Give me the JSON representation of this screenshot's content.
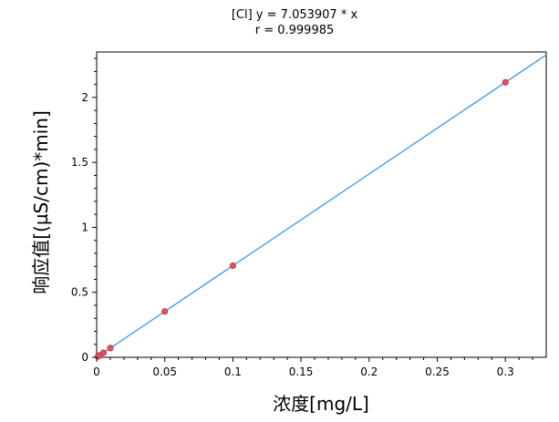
{
  "chart_data": {
    "type": "scatter",
    "title": "[Cl] y = 7.053907 * x",
    "subtitle": "r = 0.999985",
    "xlabel": "浓度[mg/L]",
    "ylabel": "响应值[(µS/cm)*min]",
    "xlim": [
      0,
      0.33
    ],
    "ylim": [
      0,
      2.35
    ],
    "x_ticks": [
      "0",
      "0.05",
      "0.1",
      "0.15",
      "0.2",
      "0.25",
      "0.3"
    ],
    "y_ticks": [
      "0",
      "0.5",
      "1",
      "1.5",
      "2"
    ],
    "grid": false,
    "series": [
      {
        "x": [
          0.001,
          0.002,
          0.005,
          0.01,
          0.05,
          0.1,
          0.3
        ],
        "y": [
          0.007,
          0.014,
          0.035,
          0.071,
          0.353,
          0.705,
          2.116
        ],
        "color": "#e05060"
      }
    ],
    "fit_line": {
      "slope": 7.053907,
      "intercept": 0,
      "color": "#3399ee"
    }
  }
}
